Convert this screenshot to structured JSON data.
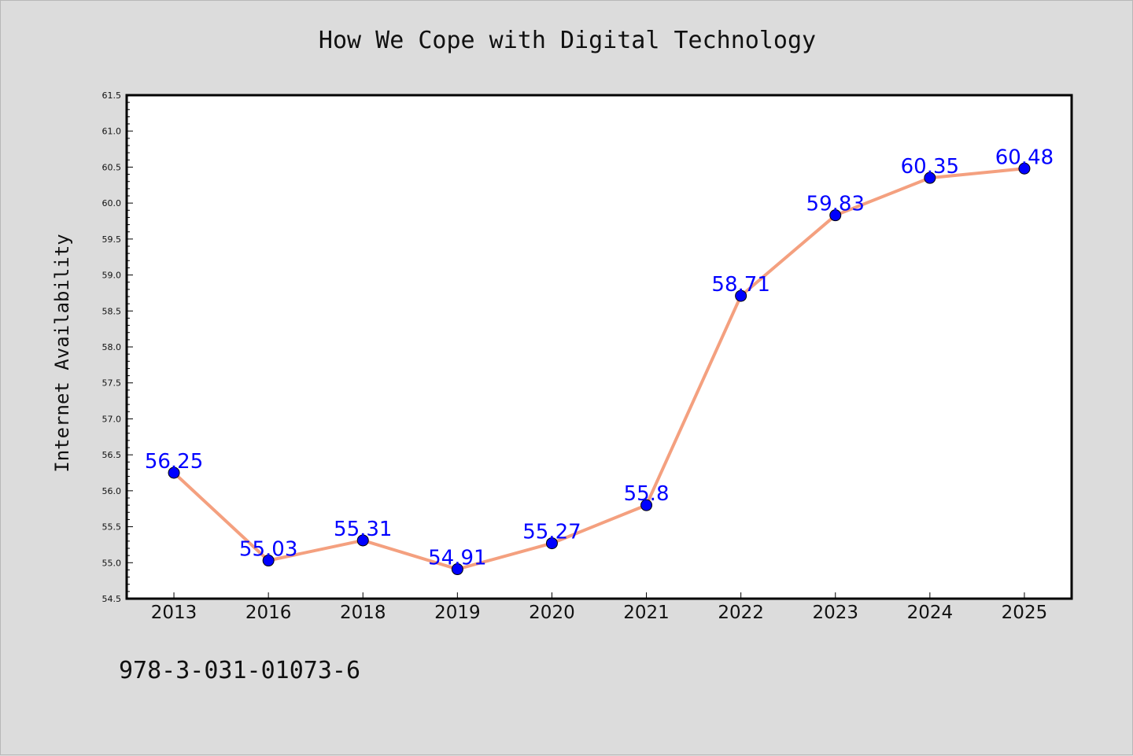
{
  "chart_data": {
    "type": "line",
    "title": "How We Cope with Digital Technology",
    "xlabel": "",
    "ylabel": "Internet Availability",
    "categories": [
      "2013",
      "2016",
      "2018",
      "2019",
      "2020",
      "2021",
      "2022",
      "2023",
      "2024",
      "2025"
    ],
    "series": [
      {
        "values": [
          56.25,
          55.03,
          55.31,
          54.91,
          55.27,
          55.8,
          58.71,
          59.83,
          60.35,
          60.48
        ],
        "labels": [
          "56.25",
          "55.03",
          "55.31",
          "54.91",
          "55.27",
          "55.8",
          "58.71",
          "59.83",
          "60.35",
          "60.48"
        ],
        "line_color": "#f4a07f",
        "marker_color": "#0000ff",
        "label_color": "#0000ff"
      }
    ],
    "ylim": [
      54.5,
      61.5
    ],
    "yticks": [
      "54.5",
      "55.0",
      "55.5",
      "56.0",
      "56.5",
      "57.0",
      "57.5",
      "58.0",
      "58.5",
      "59.0",
      "59.5",
      "60.0",
      "60.5",
      "61.0",
      "61.5"
    ],
    "grid": false,
    "legend": "none",
    "background": "#dcdcdc",
    "plot_background": "#ffffff"
  },
  "footer_code": "978-3-031-01073-6"
}
